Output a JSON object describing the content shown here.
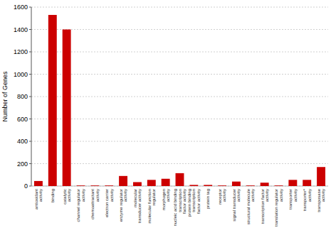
{
  "chart_data": {
    "type": "bar",
    "categories": [
      "antioxidant\nactivity",
      "binding",
      "catalytic\nactivity",
      "channel regulator\nactivity",
      "chemoattractant\nactivity",
      "electron carrier\nactivity",
      "enzyme regulator\nactivity",
      "molecular\ntransducer activity",
      "molecular function\nregulator",
      "morphogen\nactivity",
      "nucleic acid binding\ntranscription\nfactor activity",
      "protein binding\ntranscription\nfactor activity",
      "protein tag",
      "receptor\nactivity",
      "signal transducer\nactivity",
      "structural molecule\nactivity",
      "transcription factor\nactivity",
      "translation regulator\nactivity",
      "transporter\nactivity",
      "transporter*\nactivity",
      "transposase\nactivity"
    ],
    "values": [
      45,
      1530,
      1400,
      5,
      5,
      5,
      90,
      35,
      55,
      65,
      115,
      10,
      10,
      5,
      40,
      5,
      30,
      5,
      55,
      55,
      170
    ],
    "color": "#cc0000",
    "ylabel": "Number of Genes",
    "ylim": [
      0,
      1600
    ],
    "yticks": [
      0,
      200,
      400,
      600,
      800,
      1000,
      1200,
      1400,
      1600
    ],
    "grid": true
  }
}
